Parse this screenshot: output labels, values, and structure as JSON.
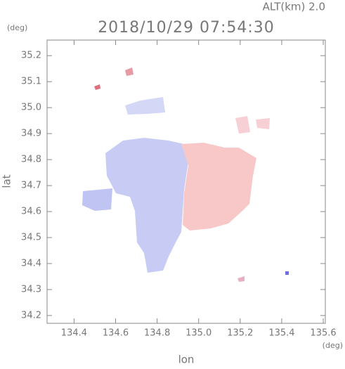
{
  "chart_data": {
    "type": "field-map",
    "altitude_label": "ALT(km) 2.0",
    "title": "2018/10/29 07:54:30",
    "y_unit": "(deg)",
    "x_unit": "(deg)",
    "xlabel": "lon",
    "ylabel": "lat",
    "xlim": [
      134.27,
      135.61
    ],
    "ylim": [
      34.17,
      35.26
    ],
    "xticks": [
      134.4,
      134.6,
      134.8,
      {
        "value": 135,
        "label": "135.0"
      },
      135.2,
      135.4,
      135.6
    ],
    "yticks": [
      34.2,
      34.3,
      34.4,
      34.5,
      34.6,
      34.7,
      34.8,
      34.9,
      {
        "value": 35,
        "label": "35.0"
      },
      35.1,
      35.2
    ]
  }
}
